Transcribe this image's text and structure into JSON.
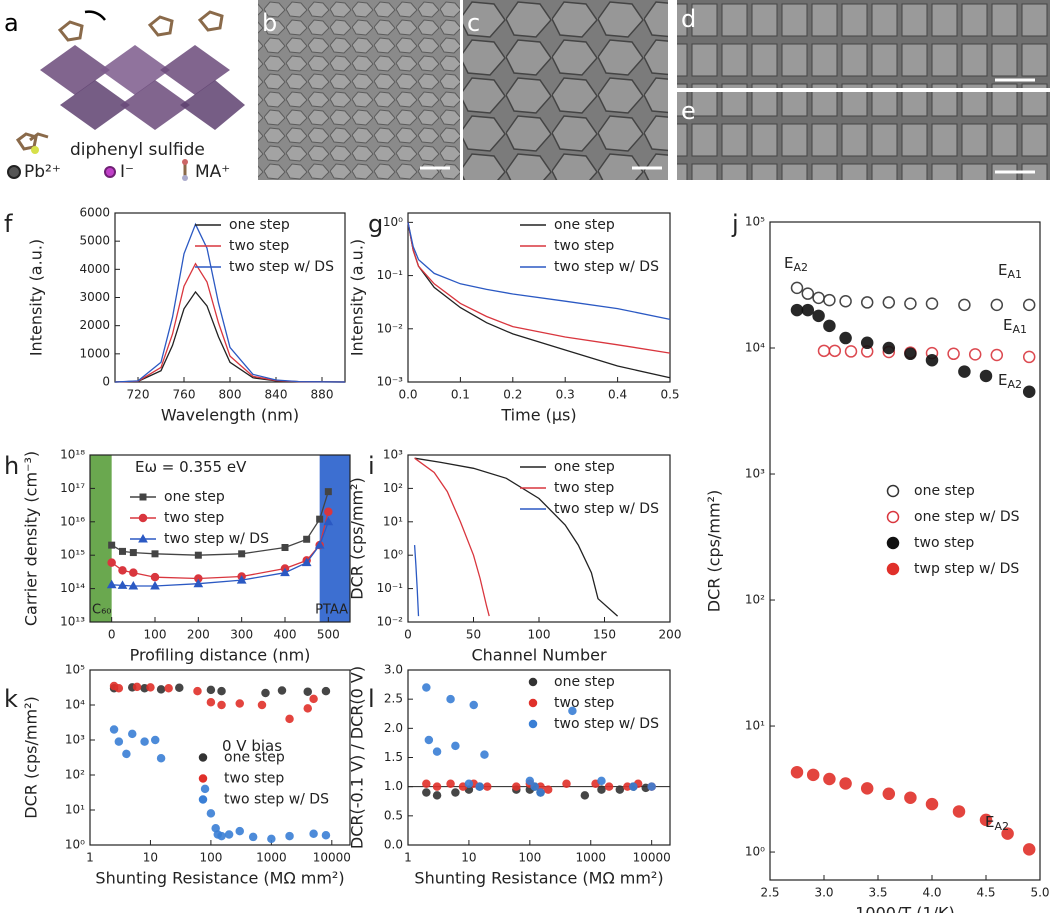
{
  "figure": {
    "panels": [
      "a",
      "b",
      "c",
      "d",
      "e"
    ],
    "molecule": "diphenyl sulfide",
    "ions": [
      "Pb²⁺",
      "I⁻",
      "MA⁺"
    ]
  },
  "chart_data": [
    {
      "label": "f",
      "type": "line",
      "xlabel": "Wavelength (nm)",
      "ylabel": "Intensity (a.u.)",
      "xlim": [
        700,
        900
      ],
      "ylim": [
        0,
        6000
      ],
      "xticks": [
        720,
        760,
        800,
        840,
        880
      ],
      "yticks": [
        0,
        1000,
        2000,
        3000,
        4000,
        5000,
        6000
      ],
      "legend": "upper right",
      "x": [
        700,
        720,
        740,
        750,
        760,
        770,
        780,
        790,
        800,
        820,
        840,
        860,
        900
      ],
      "series": [
        {
          "name": "one step",
          "color": "#222222",
          "values": [
            0,
            20,
            400,
            1300,
            2600,
            3200,
            2700,
            1600,
            700,
            150,
            40,
            10,
            0
          ]
        },
        {
          "name": "two step",
          "color": "#d9363e",
          "values": [
            0,
            30,
            520,
            1700,
            3400,
            4200,
            3550,
            2100,
            920,
            200,
            50,
            12,
            0
          ]
        },
        {
          "name": "two step w/ DS",
          "color": "#2b59c3",
          "values": [
            0,
            40,
            700,
            2300,
            4550,
            5600,
            4750,
            2800,
            1230,
            270,
            70,
            15,
            0
          ]
        }
      ]
    },
    {
      "label": "g",
      "type": "line",
      "xlabel": "Time (μs)",
      "ylabel": "Intensity (a.u.)",
      "ylog": true,
      "xlim": [
        0,
        0.5
      ],
      "ylim": [
        0.001,
        1.5
      ],
      "xticks": [
        {
          "value": 0,
          "label": "0.0"
        },
        0.1,
        0.2,
        0.3,
        0.4,
        0.5
      ],
      "yticks": [
        {
          "value": 0.001,
          "label": "10⁻³"
        },
        {
          "value": 0.01,
          "label": "10⁻²"
        },
        {
          "value": 0.1,
          "label": "10⁻¹"
        },
        {
          "value": 1,
          "label": "10⁰"
        }
      ],
      "legend": "upper right",
      "x": [
        0,
        0.01,
        0.02,
        0.05,
        0.1,
        0.15,
        0.2,
        0.3,
        0.4,
        0.5
      ],
      "series": [
        {
          "name": "one step",
          "color": "#222222",
          "values": [
            1,
            0.3,
            0.15,
            0.06,
            0.025,
            0.013,
            0.008,
            0.004,
            0.002,
            0.0012
          ]
        },
        {
          "name": "two step",
          "color": "#d9363e",
          "values": [
            1,
            0.3,
            0.15,
            0.07,
            0.03,
            0.017,
            0.011,
            0.007,
            0.005,
            0.0035
          ]
        },
        {
          "name": "two step w/ DS",
          "color": "#2b59c3",
          "values": [
            1,
            0.35,
            0.2,
            0.11,
            0.07,
            0.055,
            0.045,
            0.033,
            0.024,
            0.015
          ]
        }
      ]
    },
    {
      "label": "h",
      "type": "line",
      "xlabel": "Profiling distance (nm)",
      "ylabel": "Carrier density (cm⁻³)",
      "ylog": true,
      "xlim": [
        -50,
        550
      ],
      "ylim": [
        10000000000000.0,
        1e+18
      ],
      "xticks": [
        0,
        100,
        200,
        300,
        400,
        500
      ],
      "yticks": [
        {
          "value": 10000000000000.0,
          "label": "10¹³"
        },
        {
          "value": 100000000000000.0,
          "label": "10¹⁴"
        },
        {
          "value": 1000000000000000.0,
          "label": "10¹⁵"
        },
        {
          "value": 1e+16,
          "label": "10¹⁶"
        },
        {
          "value": 1e+17,
          "label": "10¹⁷"
        },
        {
          "value": 1e+18,
          "label": "10¹⁸"
        }
      ],
      "legend": "upper left",
      "annotations": [
        {
          "text": "Eω = 0.355 eV"
        }
      ],
      "regions": [
        {
          "label": "C₆₀",
          "range": [
            -50,
            0
          ],
          "color": "#6aa84f"
        },
        {
          "label": "PTAA",
          "range": [
            480,
            550
          ],
          "color": "#3d6fd1"
        }
      ],
      "x": [
        0,
        25,
        50,
        100,
        200,
        300,
        400,
        450,
        480,
        500
      ],
      "series": [
        {
          "name": "one step",
          "color": "#444444",
          "marker": "square",
          "values": [
            2000000000000000.0,
            1300000000000000.0,
            1200000000000000.0,
            1100000000000000.0,
            1000000000000000.0,
            1100000000000000.0,
            1700000000000000.0,
            3000000000000000.0,
            1.2e+16,
            8e+16
          ]
        },
        {
          "name": "two step",
          "color": "#d9363e",
          "marker": "circle",
          "values": [
            600000000000000.0,
            350000000000000.0,
            300000000000000.0,
            220000000000000.0,
            200000000000000.0,
            230000000000000.0,
            400000000000000.0,
            700000000000000.0,
            2000000000000000.0,
            2e+16
          ]
        },
        {
          "name": "two step w/ DS",
          "color": "#2b59c3",
          "marker": "triangle",
          "values": [
            130000000000000.0,
            125000000000000.0,
            120000000000000.0,
            120000000000000.0,
            140000000000000.0,
            180000000000000.0,
            300000000000000.0,
            600000000000000.0,
            2000000000000000.0,
            1e+16
          ]
        }
      ]
    },
    {
      "label": "i",
      "type": "line",
      "xlabel": "Channel Number",
      "ylabel": "DCR (cps/mm²)",
      "ylog": true,
      "xlim": [
        0,
        200
      ],
      "ylim": [
        0.01,
        1000
      ],
      "xticks": [
        0,
        50,
        100,
        150,
        200
      ],
      "yticks": [
        {
          "value": 0.01,
          "label": "10⁻²"
        },
        {
          "value": 0.1,
          "label": "10⁻¹"
        },
        {
          "value": 1,
          "label": "10⁰"
        },
        {
          "value": 10,
          "label": "10¹"
        },
        {
          "value": 100,
          "label": "10²"
        },
        {
          "value": 1000,
          "label": "10³"
        }
      ],
      "legend": "upper right",
      "series": [
        {
          "name": "one step",
          "color": "#222222",
          "x": [
            5,
            25,
            50,
            75,
            100,
            120,
            130,
            140,
            145,
            160
          ],
          "values": [
            800,
            600,
            400,
            200,
            50,
            8,
            2,
            0.3,
            0.05,
            0.015
          ]
        },
        {
          "name": "two step",
          "color": "#d9363e",
          "x": [
            5,
            20,
            30,
            40,
            50,
            55,
            60,
            62
          ],
          "values": [
            800,
            300,
            80,
            10,
            1,
            0.2,
            0.03,
            0.015
          ]
        },
        {
          "name": "two step w/ DS",
          "color": "#2b59c3",
          "x": [
            5,
            6,
            7,
            8
          ],
          "values": [
            2,
            0.5,
            0.1,
            0.015
          ]
        }
      ]
    },
    {
      "label": "j",
      "type": "scatter",
      "xlabel": "1000/T (1/K)",
      "ylabel": "DCR (cps/mm²)",
      "ylog": true,
      "xlim": [
        2.5,
        5.0
      ],
      "ylim": [
        0.6,
        100000
      ],
      "xticks": [
        2.5,
        {
          "value": 3,
          "label": "3.0"
        },
        3.5,
        {
          "value": 4,
          "label": "4.0"
        },
        4.5,
        {
          "value": 5,
          "label": "5.0"
        }
      ],
      "yticks": [
        {
          "value": 1,
          "label": "10⁰"
        },
        {
          "value": 10,
          "label": "10¹"
        },
        {
          "value": 100,
          "label": "10²"
        },
        {
          "value": 1000,
          "label": "10³"
        },
        {
          "value": 10000,
          "label": "10⁴"
        },
        {
          "value": 100000,
          "label": "10⁵"
        }
      ],
      "legend": "center right",
      "annotations": [
        {
          "text": "E",
          "sub": "A2"
        },
        {
          "text": "E",
          "sub": "A1"
        },
        {
          "text": "E",
          "sub": "A1"
        },
        {
          "text": "E",
          "sub": "A2"
        },
        {
          "text": "E",
          "sub": "A2"
        }
      ],
      "series": [
        {
          "name": "one step",
          "color": "#333333",
          "filled": false,
          "x": [
            2.75,
            2.85,
            2.95,
            3.05,
            3.2,
            3.4,
            3.6,
            3.8,
            4.0,
            4.3,
            4.6,
            4.9
          ],
          "values": [
            30000,
            27000,
            25000,
            24000,
            23500,
            23000,
            23000,
            22500,
            22500,
            22000,
            22000,
            22000
          ]
        },
        {
          "name": "one step w/ DS",
          "color": "#d9363e",
          "filled": false,
          "x": [
            3.0,
            3.1,
            3.25,
            3.4,
            3.6,
            3.8,
            4.0,
            4.2,
            4.4,
            4.6,
            4.9
          ],
          "values": [
            9500,
            9500,
            9400,
            9400,
            9300,
            9200,
            9100,
            9000,
            8900,
            8800,
            8500
          ]
        },
        {
          "name": "two step",
          "color": "#111111",
          "filled": true,
          "x": [
            2.75,
            2.85,
            2.95,
            3.05,
            3.2,
            3.4,
            3.6,
            3.8,
            4.0,
            4.3,
            4.5,
            4.9
          ],
          "values": [
            20000,
            20000,
            18000,
            15000,
            12000,
            11000,
            10000,
            9000,
            8000,
            6500,
            6000,
            4500
          ]
        },
        {
          "name": "twp step w/ DS",
          "color": "#e0302a",
          "filled": true,
          "x": [
            2.75,
            2.9,
            3.05,
            3.2,
            3.4,
            3.6,
            3.8,
            4.0,
            4.25,
            4.5,
            4.7,
            4.9
          ],
          "values": [
            4.3,
            4.1,
            3.8,
            3.5,
            3.2,
            2.9,
            2.7,
            2.4,
            2.1,
            1.8,
            1.4,
            1.05
          ]
        }
      ]
    },
    {
      "label": "k",
      "type": "scatter",
      "xlabel": "Shunting Resistance (MΩ mm²)",
      "ylabel": "DCR (cps/mm²)",
      "ylog": true,
      "xlog": true,
      "xlim": [
        1,
        20000
      ],
      "ylim": [
        1,
        100000
      ],
      "xticks": [
        1,
        10,
        100,
        1000,
        10000
      ],
      "yticks": [
        {
          "value": 1,
          "label": "10⁰"
        },
        {
          "value": 10,
          "label": "10¹"
        },
        {
          "value": 100,
          "label": "10²"
        },
        {
          "value": 1000,
          "label": "10³"
        },
        {
          "value": 10000,
          "label": "10⁴"
        },
        {
          "value": 100000,
          "label": "10⁵"
        }
      ],
      "legend": "center right",
      "annotations": [
        {
          "text": "0 V bias"
        }
      ],
      "series": [
        {
          "name": "one step",
          "color": "#333333",
          "filled": true,
          "x": [
            2.5,
            5,
            8,
            15,
            30,
            100,
            150,
            800,
            1500,
            4000,
            8000
          ],
          "values": [
            30000,
            32000,
            30000,
            28000,
            31000,
            27000,
            25000,
            22000,
            26000,
            24000,
            25000
          ]
        },
        {
          "name": "two step",
          "color": "#e0302a",
          "filled": true,
          "x": [
            2.5,
            3,
            6,
            10,
            20,
            60,
            100,
            150,
            300,
            700,
            2000,
            4000,
            5000
          ],
          "values": [
            35000,
            30000,
            33000,
            32000,
            30000,
            25000,
            12000,
            10000,
            11000,
            10000,
            4000,
            8000,
            15000
          ]
        },
        {
          "name": "two step w/ DS",
          "color": "#3a7fd5",
          "filled": true,
          "x": [
            2.5,
            3,
            4,
            5,
            8,
            12,
            15,
            80,
            100,
            120,
            130,
            150,
            200,
            300,
            500,
            1000,
            2000,
            5000,
            8000
          ],
          "values": [
            2000,
            900,
            400,
            1500,
            900,
            1000,
            300,
            40,
            8,
            3,
            2,
            1.8,
            2,
            2.5,
            1.7,
            1.5,
            1.8,
            2.1,
            1.9
          ]
        }
      ]
    },
    {
      "label": "l",
      "type": "scatter",
      "xlabel": "Shunting Resistance (MΩ mm²)",
      "ylabel": "DCR(-0.1 V) / DCR(0 V)",
      "xlog": true,
      "xlim": [
        1,
        20000
      ],
      "ylim": [
        0,
        3
      ],
      "xticks": [
        1,
        10,
        100,
        1000,
        10000
      ],
      "yticks": [
        {
          "value": 0,
          "label": "0.0"
        },
        0.5,
        {
          "value": 1,
          "label": "1.0"
        },
        1.5,
        {
          "value": 2,
          "label": "2.0"
        },
        2.5,
        {
          "value": 3,
          "label": "3.0"
        }
      ],
      "legend": "upper right",
      "hline": 1,
      "series": [
        {
          "name": "one step",
          "color": "#333333",
          "filled": true,
          "x": [
            2,
            3,
            6,
            10,
            15,
            60,
            100,
            120,
            150,
            800,
            1500,
            3000,
            5000,
            8000
          ],
          "values": [
            0.9,
            0.85,
            0.9,
            0.95,
            1.0,
            0.95,
            0.95,
            1.0,
            0.9,
            0.85,
            0.95,
            0.95,
            1.0,
            0.98
          ]
        },
        {
          "name": "two step",
          "color": "#e0302a",
          "filled": true,
          "x": [
            2,
            3,
            5,
            8,
            12,
            20,
            60,
            100,
            150,
            200,
            400,
            1200,
            2000,
            4000,
            6000,
            10000
          ],
          "values": [
            1.05,
            1.0,
            1.05,
            1.0,
            1.05,
            1.0,
            1.0,
            1.05,
            1.0,
            0.95,
            1.05,
            1.05,
            1.0,
            1.0,
            1.05,
            1.0
          ]
        },
        {
          "name": "two step w/ DS",
          "color": "#3a7fd5",
          "filled": true,
          "x": [
            2,
            2.2,
            3,
            5,
            6,
            10,
            12,
            15,
            18,
            100,
            120,
            150,
            500,
            1500,
            5000,
            10000
          ],
          "values": [
            2.7,
            1.8,
            1.6,
            2.5,
            1.7,
            1.05,
            2.4,
            1.0,
            1.55,
            1.1,
            1.0,
            0.9,
            2.3,
            1.1,
            1.0,
            1.0
          ]
        }
      ]
    }
  ]
}
